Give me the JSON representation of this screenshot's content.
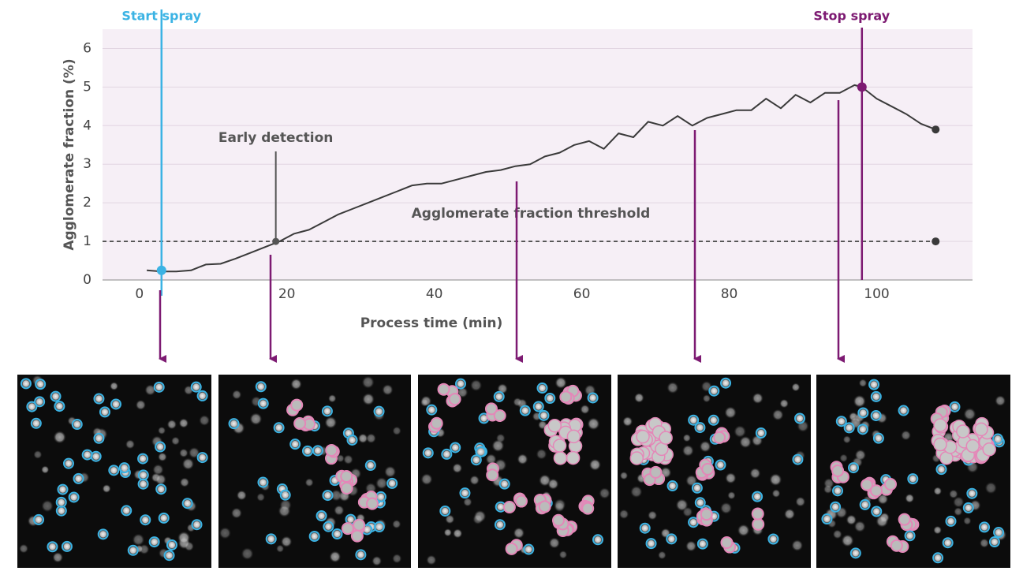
{
  "chart_data": {
    "type": "line",
    "x_label": "Process time (min)",
    "y_label": "Agglomerate fraction (%)",
    "x": [
      1,
      3,
      5,
      7,
      9,
      11,
      13,
      15,
      17,
      19,
      21,
      23,
      25,
      27,
      29,
      31,
      33,
      35,
      37,
      39,
      41,
      43,
      45,
      47,
      49,
      51,
      53,
      55,
      57,
      59,
      61,
      63,
      65,
      67,
      69,
      71,
      73,
      75,
      77,
      79,
      81,
      83,
      85,
      87,
      89,
      91,
      93,
      95,
      97,
      98,
      100,
      102,
      104,
      106,
      108
    ],
    "series": [
      {
        "color": "#3a3a3a",
        "values": [
          0.25,
          0.22,
          0.22,
          0.25,
          0.4,
          0.42,
          0.55,
          0.7,
          0.85,
          1.0,
          1.2,
          1.3,
          1.5,
          1.7,
          1.85,
          2.0,
          2.15,
          2.3,
          2.45,
          2.5,
          2.5,
          2.6,
          2.7,
          2.8,
          2.85,
          2.95,
          3.0,
          3.2,
          3.3,
          3.5,
          3.6,
          3.4,
          3.8,
          3.7,
          4.1,
          4.0,
          4.25,
          4.0,
          4.2,
          4.3,
          4.4,
          4.4,
          4.7,
          4.45,
          4.8,
          4.6,
          4.85,
          4.85,
          5.05,
          5.0,
          4.7,
          4.5,
          4.3,
          4.05,
          3.9
        ]
      }
    ],
    "xlim": [
      -5,
      113
    ],
    "ylim": [
      0,
      6.5
    ],
    "xticks": [
      0,
      20,
      40,
      60,
      80,
      100
    ],
    "yticks": [
      0,
      1,
      2,
      3,
      4,
      5,
      6
    ],
    "grid": true,
    "background": "#f6eff6",
    "threshold": {
      "label": "Agglomerate  fraction threshold",
      "value": 1,
      "color": "#3a3a3a"
    },
    "events": [
      {
        "label": "Start spray",
        "x": 3,
        "y": 0.25,
        "color": "#3bb3e4"
      },
      {
        "label": "Early detection",
        "x": 18.5,
        "y": 1.0,
        "color": "#555555"
      },
      {
        "label": "Stop spray",
        "x": 98,
        "y": 5.0,
        "color": "#7d1a72"
      }
    ]
  }
}
